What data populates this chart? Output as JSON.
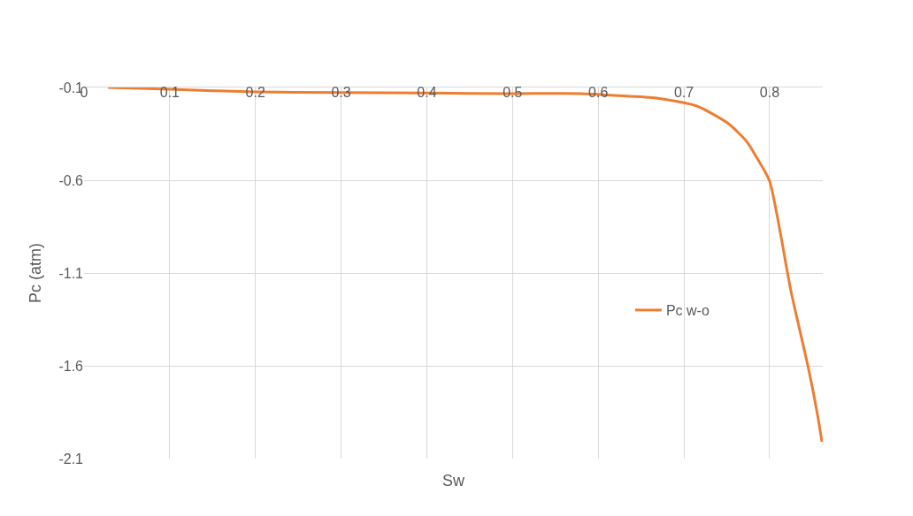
{
  "chart_data": {
    "type": "line",
    "xlabel": "Sw",
    "ylabel": "Pc (atm)",
    "x": [
      0.028,
      0.1,
      0.2,
      0.3,
      0.4,
      0.5,
      0.58,
      0.62,
      0.668,
      0.715,
      0.752,
      0.773,
      0.786,
      0.8,
      0.825,
      0.846,
      0.856,
      0.861
    ],
    "series": [
      {
        "name": "Pc w-o",
        "color": "#ed7d31",
        "values": [
          -0.1,
          -0.11,
          -0.124,
          -0.127,
          -0.13,
          -0.133,
          -0.133,
          -0.143,
          -0.157,
          -0.2,
          -0.295,
          -0.39,
          -0.486,
          -0.605,
          -1.2,
          -1.629,
          -1.867,
          -2.01
        ]
      }
    ],
    "xlim": [
      0,
      0.862
    ],
    "xticks": [
      0,
      0.1,
      0.2,
      0.3,
      0.4,
      0.5,
      0.6,
      0.7,
      0.8
    ],
    "ylim": [
      -2.1,
      -0.1
    ],
    "yticks": [
      -2.1,
      -1.6,
      -1.1,
      -0.6,
      -0.1
    ],
    "grid": true,
    "legend": "right",
    "marker": "none",
    "line_style": "solid"
  }
}
